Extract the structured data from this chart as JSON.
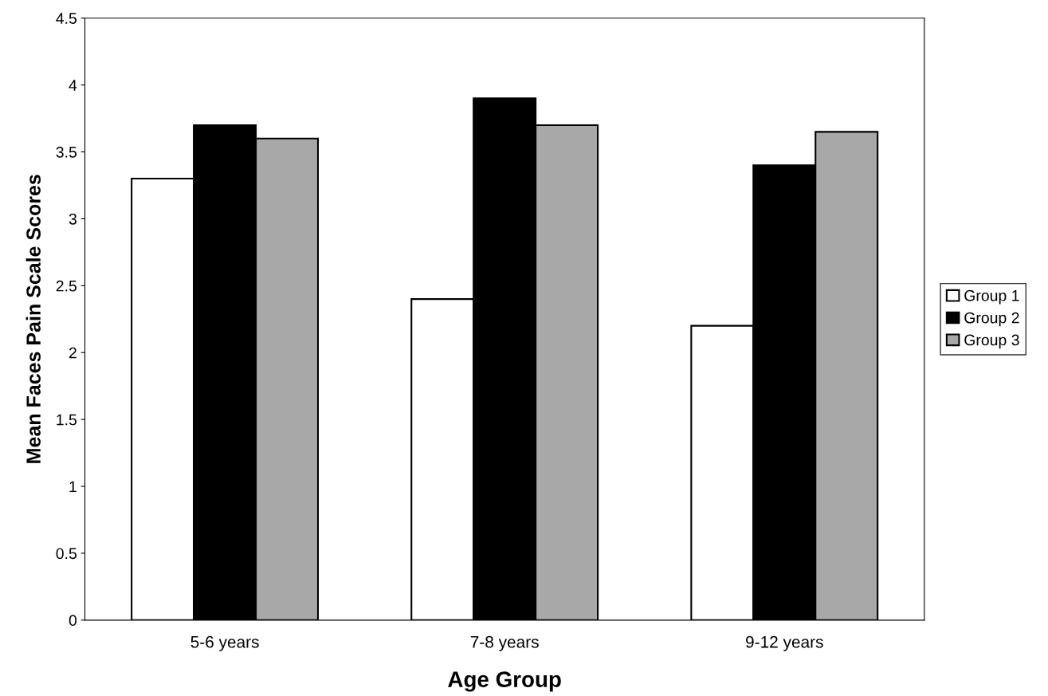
{
  "chart_data": {
    "type": "bar",
    "xlabel": "Age Group",
    "ylabel": "Mean Faces Pain Scale Scores",
    "categories": [
      "5-6 years",
      "7-8 years",
      "9-12 years"
    ],
    "series": [
      {
        "name": "Group 1",
        "color": "#ffffff",
        "values": [
          3.3,
          2.4,
          2.2
        ]
      },
      {
        "name": "Group 2",
        "color": "#000000",
        "values": [
          3.7,
          3.9,
          3.4
        ]
      },
      {
        "name": "Group 3",
        "color": "#a8a8a8",
        "values": [
          3.6,
          3.7,
          3.65
        ]
      }
    ],
    "ylim": [
      0,
      4.5
    ],
    "yticks": [
      0,
      0.5,
      1,
      1.5,
      2,
      2.5,
      3,
      3.5,
      4,
      4.5
    ],
    "grid": false,
    "legend": "right"
  }
}
